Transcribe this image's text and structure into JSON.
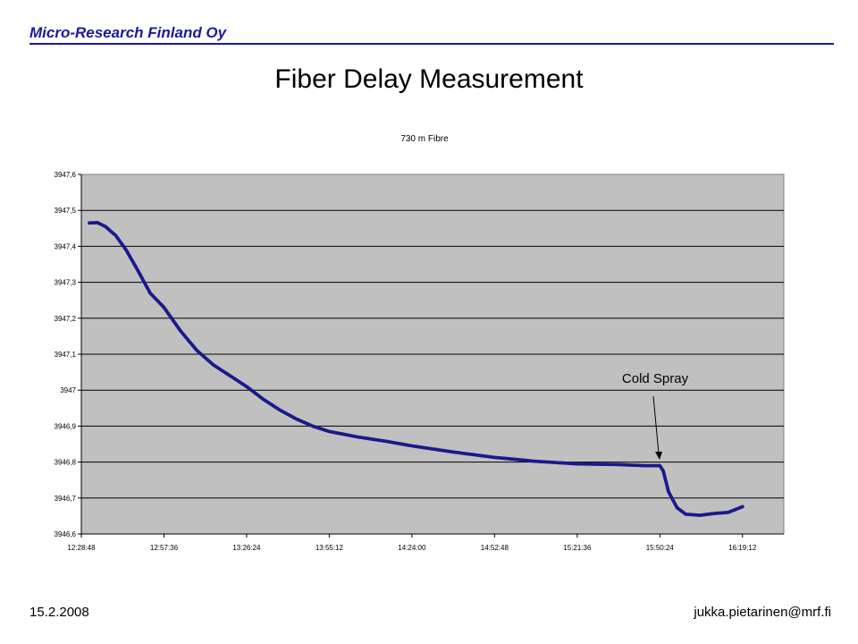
{
  "header": {
    "company": "Micro-Research Finland Oy"
  },
  "slide": {
    "title": "Fiber Delay Measurement"
  },
  "footer": {
    "date": "15.2.2008",
    "email": "jukka.pietarinen@mrf.fi"
  },
  "colors": {
    "series": "#1a1a8c",
    "plot_background": "#c0c0c0",
    "brand": "#1a1a9c"
  },
  "chart_data": {
    "type": "scatter",
    "title": "730 m Fibre",
    "xlabel": "",
    "ylabel": "",
    "x_ticks": [
      "12:28:48",
      "12:57:36",
      "13:26:24",
      "13:55:12",
      "14:24:00",
      "14:52:48",
      "15:21:36",
      "15:50:24",
      "16:19:12"
    ],
    "y_ticks": [
      "3946,6",
      "3946,7",
      "3946,8",
      "3946,9",
      "3947",
      "3947,1",
      "3947,2",
      "3947,3",
      "3947,4",
      "3947,5",
      "3947,6"
    ],
    "xlim": [
      "12:28:48",
      "16:33:36"
    ],
    "ylim": [
      3946.6,
      3947.6
    ],
    "grid": "horizontal",
    "legend": "none",
    "series": [
      {
        "x": [
          "12:31:36",
          "12:34:24",
          "12:37:12",
          "12:40:48",
          "12:44:24",
          "12:48:00",
          "12:52:48",
          "12:57:36",
          "13:03:21",
          "13:09:07",
          "13:14:52",
          "13:20:38",
          "13:26:24",
          "13:32:09",
          "13:37:55",
          "13:43:40",
          "13:49:26",
          "13:55:12",
          "14:05:00",
          "14:14:48",
          "14:24:00",
          "14:38:24",
          "14:52:48",
          "15:07:12",
          "15:21:36",
          "15:36:00",
          "15:45:00",
          "15:49:12",
          "15:50:24",
          "15:51:36",
          "15:53:24",
          "15:56:24",
          "15:59:24",
          "16:04:24",
          "16:09:12",
          "16:14:12",
          "16:18:00",
          "16:19:12"
        ],
        "y": [
          3947.465,
          3947.466,
          3947.455,
          3947.43,
          3947.39,
          3947.34,
          3947.27,
          3947.23,
          3947.165,
          3947.11,
          3947.07,
          3947.04,
          3947.01,
          3946.975,
          3946.945,
          3946.92,
          3946.9,
          3946.885,
          3946.87,
          3946.858,
          3946.845,
          3946.828,
          3946.813,
          3946.802,
          3946.795,
          3946.793,
          3946.79,
          3946.79,
          3946.79,
          3946.775,
          3946.718,
          3946.673,
          3946.655,
          3946.652,
          3946.657,
          3946.66,
          3946.672,
          3946.676
        ]
      }
    ],
    "annotations": [
      {
        "text": "Cold Spray",
        "x": "15:50:24",
        "y": 3946.79
      }
    ]
  }
}
